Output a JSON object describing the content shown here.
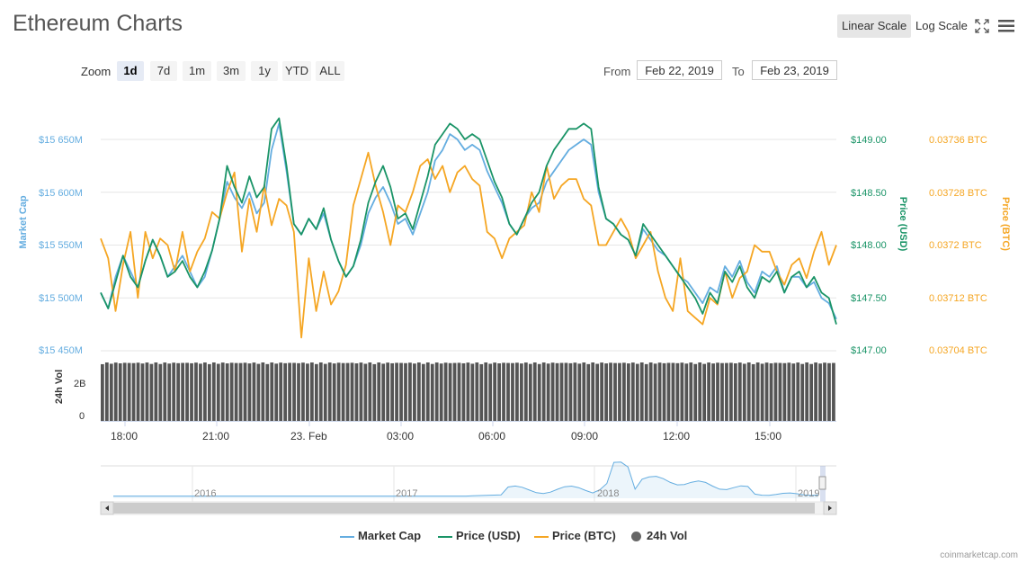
{
  "header": {
    "title": "Ethereum Charts",
    "linear_scale_label": "Linear Scale",
    "log_scale_label": "Log Scale"
  },
  "zoom": {
    "label": "Zoom",
    "buttons": [
      "1d",
      "7d",
      "1m",
      "3m",
      "1y",
      "YTD",
      "ALL"
    ],
    "active": "1d"
  },
  "range": {
    "from_label": "From",
    "from_value": "Feb 22, 2019",
    "to_label": "To",
    "to_value": "Feb 23, 2019"
  },
  "legend": {
    "items": [
      "Market Cap",
      "Price (USD)",
      "Price (BTC)",
      "24h Vol"
    ]
  },
  "credit": "coinmarketcap.com",
  "colors": {
    "market_cap": "#64ade0",
    "price_usd": "#1a9467",
    "price_btc": "#f5a623",
    "volume": "#555555"
  },
  "chart_data": {
    "type": "line",
    "x_tick_labels": [
      "18:00",
      "21:00",
      "23. Feb",
      "03:00",
      "06:00",
      "09:00",
      "12:00",
      "15:00"
    ],
    "axes": {
      "left": {
        "label": "Market Cap",
        "tick_labels": [
          "$15 650M",
          "$15 600M",
          "$15 550M",
          "$15 500M",
          "$15 450M"
        ],
        "range": [
          15450,
          15650
        ]
      },
      "right_usd": {
        "label": "Price (USD)",
        "tick_labels": [
          "$149.00",
          "$148.50",
          "$148.00",
          "$147.50",
          "$147.00"
        ],
        "range": [
          147.0,
          149.0
        ]
      },
      "right_btc": {
        "label": "Price (BTC)",
        "tick_labels": [
          "0.03736 BTC",
          "0.03728 BTC",
          "0.0372 BTC",
          "0.03712 BTC",
          "0.03704 BTC"
        ],
        "range": [
          0.03704,
          0.03736
        ]
      },
      "volume": {
        "label": "24h Vol",
        "tick_labels": [
          "2B",
          "0"
        ]
      }
    },
    "series": [
      {
        "name": "Market Cap",
        "values": [
          15505,
          15490,
          15520,
          15540,
          15525,
          15510,
          15535,
          15555,
          15540,
          15520,
          15530,
          15540,
          15525,
          15510,
          15520,
          15545,
          15575,
          15610,
          15595,
          15585,
          15600,
          15580,
          15590,
          15640,
          15665,
          15620,
          15570,
          15560,
          15575,
          15565,
          15580,
          15555,
          15535,
          15520,
          15530,
          15550,
          15580,
          15595,
          15605,
          15590,
          15570,
          15575,
          15560,
          15580,
          15600,
          15630,
          15640,
          15655,
          15650,
          15640,
          15645,
          15640,
          15620,
          15605,
          15590,
          15570,
          15560,
          15575,
          15585,
          15590,
          15610,
          15620,
          15630,
          15640,
          15645,
          15650,
          15645,
          15600,
          15575,
          15570,
          15560,
          15555,
          15540,
          15565,
          15555,
          15545,
          15540,
          15530,
          15520,
          15515,
          15505,
          15495,
          15510,
          15505,
          15530,
          15520,
          15535,
          15515,
          15505,
          15525,
          15520,
          15530,
          15505,
          15520,
          15520,
          15510,
          15515,
          15500,
          15495,
          15480
        ]
      },
      {
        "name": "Price (USD)",
        "values": [
          147.55,
          147.4,
          147.65,
          147.9,
          147.7,
          147.6,
          147.85,
          148.05,
          147.9,
          147.7,
          147.75,
          147.85,
          147.7,
          147.6,
          147.75,
          147.95,
          148.25,
          148.75,
          148.55,
          148.4,
          148.65,
          148.45,
          148.55,
          149.1,
          149.2,
          148.75,
          148.2,
          148.1,
          148.25,
          148.15,
          148.35,
          148.05,
          147.85,
          147.7,
          147.8,
          148.05,
          148.4,
          148.6,
          148.75,
          148.55,
          148.25,
          148.3,
          148.15,
          148.4,
          148.65,
          148.95,
          149.05,
          149.15,
          149.1,
          149.0,
          149.05,
          149.0,
          148.8,
          148.6,
          148.45,
          148.2,
          148.1,
          148.25,
          148.4,
          148.5,
          148.75,
          148.9,
          149.0,
          149.1,
          149.1,
          149.15,
          149.1,
          148.55,
          148.25,
          148.2,
          148.1,
          148.05,
          147.9,
          148.2,
          148.1,
          148.0,
          147.9,
          147.8,
          147.7,
          147.6,
          147.5,
          147.35,
          147.55,
          147.45,
          147.75,
          147.65,
          147.8,
          147.6,
          147.5,
          147.7,
          147.65,
          147.75,
          147.55,
          147.7,
          147.75,
          147.6,
          147.7,
          147.55,
          147.5,
          147.25
        ]
      },
      {
        "name": "Price (BTC)",
        "values": [
          0.03721,
          0.03718,
          0.0371,
          0.03717,
          0.03722,
          0.03712,
          0.03722,
          0.03718,
          0.03721,
          0.0372,
          0.03716,
          0.03722,
          0.03716,
          0.03719,
          0.03721,
          0.03725,
          0.03724,
          0.03728,
          0.03731,
          0.03719,
          0.03727,
          0.03722,
          0.03729,
          0.03723,
          0.03727,
          0.03726,
          0.03722,
          0.03706,
          0.03718,
          0.0371,
          0.03716,
          0.03711,
          0.03713,
          0.03717,
          0.03726,
          0.0373,
          0.03734,
          0.03729,
          0.03725,
          0.0372,
          0.03726,
          0.03725,
          0.03728,
          0.03732,
          0.03733,
          0.0373,
          0.03732,
          0.03728,
          0.03731,
          0.03732,
          0.0373,
          0.03729,
          0.03722,
          0.03721,
          0.03718,
          0.03721,
          0.03722,
          0.03723,
          0.03728,
          0.03725,
          0.03732,
          0.03727,
          0.03729,
          0.0373,
          0.0373,
          0.03727,
          0.03726,
          0.0372,
          0.0372,
          0.03722,
          0.03724,
          0.03722,
          0.03718,
          0.0372,
          0.03722,
          0.03716,
          0.03712,
          0.0371,
          0.03718,
          0.0371,
          0.03709,
          0.03708,
          0.03712,
          0.03711,
          0.03716,
          0.03712,
          0.03715,
          0.03716,
          0.0372,
          0.03719,
          0.03719,
          0.03716,
          0.03714,
          0.03717,
          0.03718,
          0.03715,
          0.03719,
          0.03722,
          0.03717,
          0.0372
        ]
      }
    ],
    "volume_note": "bars near full height across the window",
    "navigator": {
      "year_labels": [
        "2016",
        "2017",
        "2018",
        "2019"
      ]
    },
    "grid": true,
    "legend_position": "bottom-center"
  }
}
